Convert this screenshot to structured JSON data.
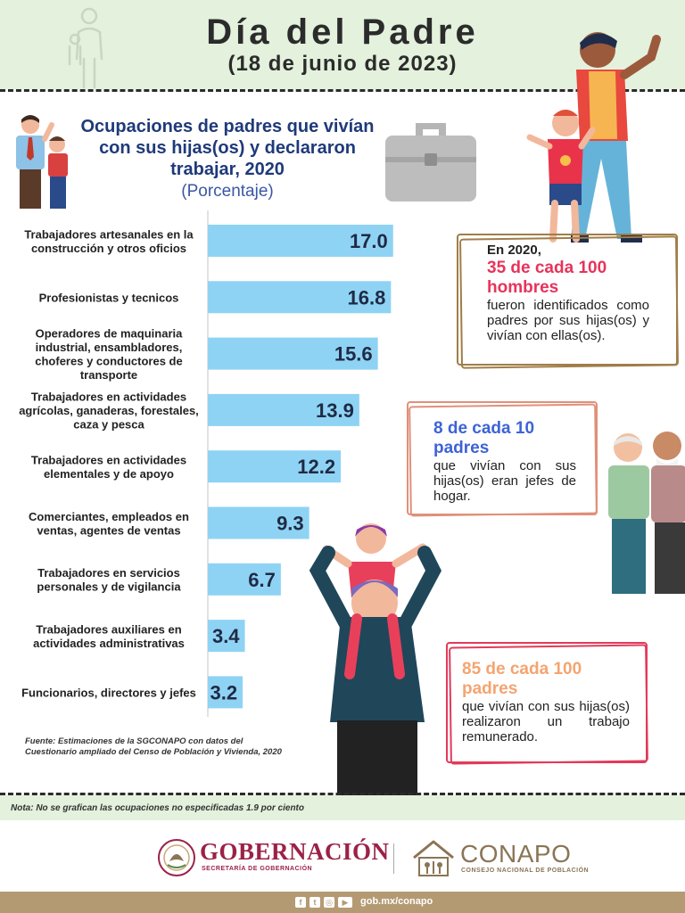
{
  "header": {
    "title": "Día del Padre",
    "subtitle": "(18 de junio de 2023)"
  },
  "chart_title": "Ocupaciones de padres que vivían con sus hijas(os) y declararon trabajar, 2020",
  "chart_subtitle": "(Porcentaje)",
  "chart_data": {
    "type": "bar",
    "orientation": "horizontal",
    "title": "Ocupaciones de padres que vivían con sus hijas(os) y declararon trabajar, 2020",
    "subtitle": "(Porcentaje)",
    "categories": [
      [
        "Trabajadores artesanales en la",
        "construcción y otros oficios"
      ],
      [
        "Profesionistas y tecnicos"
      ],
      [
        "Operadores de maquinaria",
        "industrial, ensambladores,",
        "choferes y conductores de",
        "transporte"
      ],
      [
        "Trabajadores en actividades",
        "agrícolas, ganaderas, forestales,",
        "caza y pesca"
      ],
      [
        "Trabajadores en actividades",
        "elementales y de apoyo"
      ],
      [
        "Comerciantes, empleados en",
        "ventas, agentes de ventas"
      ],
      [
        "Trabajadores en servicios",
        "personales y de vigilancia"
      ],
      [
        "Trabajadores auxiliares en",
        "actividades administrativas"
      ],
      [
        "Funcionarios, directores y jefes"
      ]
    ],
    "values": [
      17.0,
      16.8,
      15.6,
      13.9,
      12.2,
      9.3,
      6.7,
      3.4,
      3.2
    ],
    "value_labels": [
      "17.0",
      "16.8",
      "15.6",
      "13.9",
      "12.2",
      "9.3",
      "6.7",
      "3.4",
      "3.2"
    ],
    "xlim": [
      0,
      18
    ],
    "bar_color": "#8fd3f4",
    "grid": false,
    "legend": "none"
  },
  "source": "Fuente: Estimaciones de la SGCONAPO con datos del Cuestionario ampliado del Censo de Población y Vivienda, 2020",
  "note": "Nota: No se grafican las ocupaciones no especificadas 1.9 por ciento",
  "callouts": [
    {
      "intro": "En 2020,",
      "highlight": "35 de cada 100 hombres",
      "text": "fueron identificados como padres por sus hijas(os) y vivían con ellas(os).",
      "color": "#e8335a",
      "frame_color": "#a07d48"
    },
    {
      "intro": "",
      "highlight": "8 de cada 10 padres",
      "text": "que vivían con sus hijas(os) eran jefes de hogar.",
      "color": "#3d63d6",
      "frame_color": "#e0907a"
    },
    {
      "intro": "",
      "highlight": "85 de cada 100 padres",
      "text": "que vivían con sus hijas(os) realizaron un trabajo remunerado.",
      "color": "#f4a470",
      "frame_color": "#e23a5a"
    }
  ],
  "logos": {
    "gobernacion": "GOBERNACIÓN",
    "gobernacion_sub": "SECRETARÍA DE GOBERNACIÓN",
    "conapo": "CONAPO",
    "conapo_sub": "CONSEJO NACIONAL DE POBLACIÓN"
  },
  "footer": {
    "url": "gob.mx/conapo",
    "icons": [
      "facebook-icon",
      "twitter-icon",
      "instagram-icon",
      "youtube-icon"
    ]
  },
  "colors": {
    "header_bg": "#e3f1dd",
    "title_blue": "#1f3a7a",
    "footer_bg": "#b49a73",
    "gob_red": "#9b2247",
    "conapo_brown": "#8a7556"
  }
}
